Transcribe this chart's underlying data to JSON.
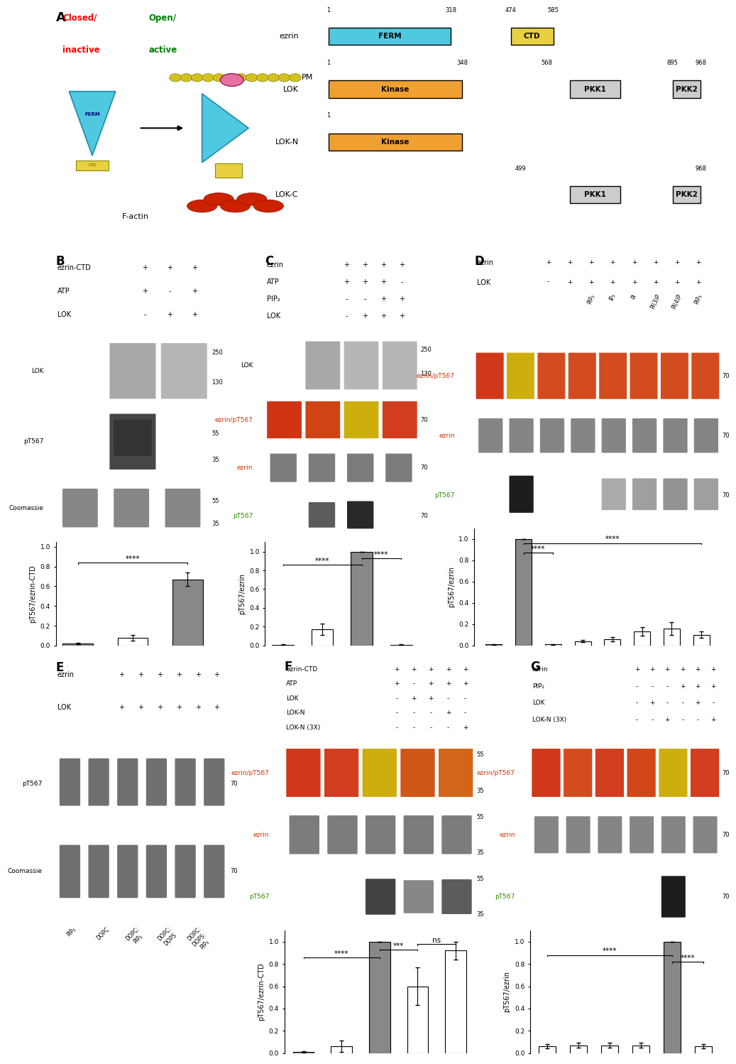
{
  "panel_B_bars": {
    "values": [
      0.02,
      0.08,
      0.67
    ],
    "errors": [
      0.01,
      0.03,
      0.07
    ],
    "colors": [
      "#888888",
      "#ffffff",
      "#888888"
    ],
    "edge_colors": [
      "#000000",
      "#000000",
      "#000000"
    ],
    "ylabel": "pT567/ezrin-CTD",
    "ylim": [
      0,
      1.05
    ],
    "yticks": [
      0.0,
      0.2,
      0.4,
      0.6,
      0.8,
      1.0
    ]
  },
  "panel_C_bars": {
    "values": [
      0.01,
      0.17,
      1.0,
      0.01
    ],
    "errors": [
      0.005,
      0.06,
      0.0,
      0.005
    ],
    "colors": [
      "#888888",
      "#ffffff",
      "#888888",
      "#888888"
    ],
    "edge_colors": [
      "#000000",
      "#000000",
      "#000000",
      "#000000"
    ],
    "ylabel": "pT567/ezrin",
    "ylim": [
      0,
      1.1
    ],
    "yticks": [
      0.0,
      0.2,
      0.4,
      0.6,
      0.8,
      1.0
    ]
  },
  "panel_D_bars": {
    "values": [
      0.01,
      1.0,
      0.01,
      0.04,
      0.06,
      0.13,
      0.16,
      0.1
    ],
    "errors": [
      0.005,
      0.0,
      0.005,
      0.01,
      0.02,
      0.04,
      0.06,
      0.03
    ],
    "colors": [
      "#888888",
      "#888888",
      "#ffffff",
      "#ffffff",
      "#ffffff",
      "#ffffff",
      "#ffffff",
      "#ffffff"
    ],
    "edge_colors": [
      "#000000",
      "#000000",
      "#000000",
      "#000000",
      "#000000",
      "#000000",
      "#000000",
      "#000000"
    ],
    "ylabel": "pT567/ezrin",
    "ylim": [
      0,
      1.1
    ],
    "yticks": [
      0.0,
      0.2,
      0.4,
      0.6,
      0.8,
      1.0
    ]
  },
  "panel_F_bars": {
    "values": [
      0.01,
      0.06,
      1.0,
      0.6,
      0.92
    ],
    "errors": [
      0.005,
      0.05,
      0.0,
      0.17,
      0.08
    ],
    "colors": [
      "#888888",
      "#ffffff",
      "#888888",
      "#ffffff",
      "#ffffff"
    ],
    "edge_colors": [
      "#000000",
      "#000000",
      "#000000",
      "#000000",
      "#000000"
    ],
    "ylabel": "pT567/ezrin-CTD",
    "ylim": [
      0,
      1.1
    ],
    "yticks": [
      0.0,
      0.2,
      0.4,
      0.6,
      0.8,
      1.0
    ]
  },
  "panel_G_bars": {
    "values": [
      0.06,
      0.07,
      0.07,
      0.07,
      1.0,
      0.06
    ],
    "errors": [
      0.02,
      0.02,
      0.02,
      0.02,
      0.0,
      0.02
    ],
    "colors": [
      "#ffffff",
      "#ffffff",
      "#ffffff",
      "#ffffff",
      "#888888",
      "#ffffff"
    ],
    "edge_colors": [
      "#000000",
      "#000000",
      "#000000",
      "#000000",
      "#000000",
      "#000000"
    ],
    "ylabel": "pT567/ezrin",
    "ylim": [
      0,
      1.1
    ],
    "yticks": [
      0.0,
      0.2,
      0.4,
      0.6,
      0.8,
      1.0
    ]
  }
}
